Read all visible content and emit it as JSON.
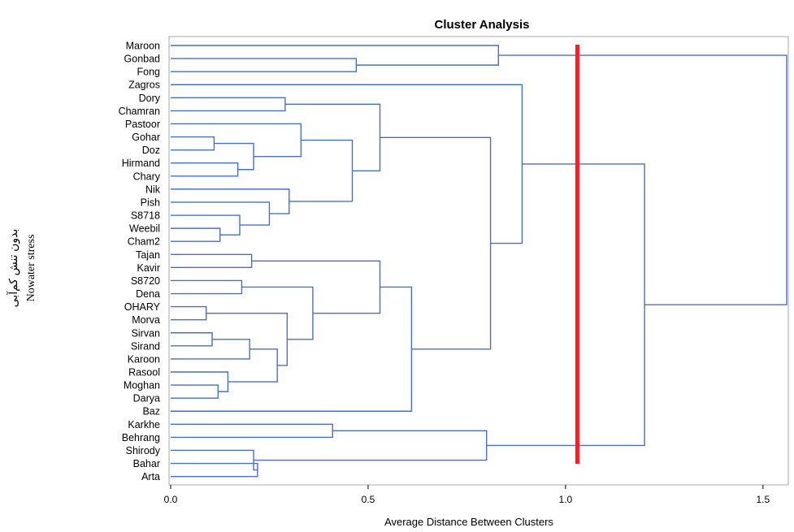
{
  "chart_data": {
    "type": "dendrogram",
    "title": "Cluster Analysis",
    "xlabel": "Average Distance Between Clusters",
    "side_label_lines": [
      "بدون تنش کم‌آبی",
      "Nowater stress"
    ],
    "xlim": [
      0,
      1.56
    ],
    "xticks": [
      {
        "value": 0,
        "label": "0.0"
      },
      {
        "value": 0.5,
        "label": "0.5"
      },
      {
        "value": 1.0,
        "label": "1.0"
      },
      {
        "value": 1.5,
        "label": "1.5"
      }
    ],
    "cut_line": {
      "value": 1.03,
      "color": "#e8262a"
    },
    "branch_color": "#4a6fc0",
    "leaves": [
      "Maroon",
      "Gonbad",
      "Fong",
      "Zagros",
      "Dory",
      "Chamran",
      "Pastoor",
      "Gohar",
      "Doz",
      "Hirmand",
      "Chary",
      "Nik",
      "Pish",
      "S8718",
      "Weebil",
      "Cham2",
      "Tajan",
      "Kavir",
      "S8720",
      "Dena",
      "OHARY",
      "Morva",
      "Sirvan",
      "Sirand",
      "Karoon",
      "Rasool",
      "Moghan",
      "Darya",
      "Baz",
      "Karkhe",
      "Behrang",
      "Shirody",
      "Bahar",
      "Arta"
    ],
    "merges": [
      {
        "id": "m1",
        "a": "Gohar",
        "b": "Doz",
        "height": 0.11
      },
      {
        "id": "m2",
        "a": "Hirmand",
        "b": "Chary",
        "height": 0.17
      },
      {
        "id": "m3",
        "a": "m1",
        "b": "m2",
        "height": 0.21
      },
      {
        "id": "m4",
        "a": "Pastoor",
        "b": "m3",
        "height": 0.33
      },
      {
        "id": "m5",
        "a": "Weebil",
        "b": "Cham2",
        "height": 0.125
      },
      {
        "id": "m6",
        "a": "S8718",
        "b": "m5",
        "height": 0.175
      },
      {
        "id": "m7",
        "a": "Pish",
        "b": "m6",
        "height": 0.25
      },
      {
        "id": "m8",
        "a": "Nik",
        "b": "m7",
        "height": 0.3
      },
      {
        "id": "m9",
        "a": "m4",
        "b": "m8",
        "height": 0.46
      },
      {
        "id": "m10",
        "a": "Dory",
        "b": "Chamran",
        "height": 0.29
      },
      {
        "id": "m11",
        "a": "m10",
        "b": "m9",
        "height": 0.53
      },
      {
        "id": "m12",
        "a": "Tajan",
        "b": "Kavir",
        "height": 0.205
      },
      {
        "id": "m13",
        "a": "S8720",
        "b": "Dena",
        "height": 0.18
      },
      {
        "id": "m14",
        "a": "OHARY",
        "b": "Morva",
        "height": 0.09
      },
      {
        "id": "m15",
        "a": "Sirvan",
        "b": "Sirand",
        "height": 0.105
      },
      {
        "id": "m16",
        "a": "m15",
        "b": "Karoon",
        "height": 0.2
      },
      {
        "id": "m17",
        "a": "Moghan",
        "b": "Darya",
        "height": 0.12
      },
      {
        "id": "m18",
        "a": "Rasool",
        "b": "m17",
        "height": 0.145
      },
      {
        "id": "m19",
        "a": "m16",
        "b": "m18",
        "height": 0.27
      },
      {
        "id": "m20",
        "a": "m14",
        "b": "m19",
        "height": 0.295
      },
      {
        "id": "m21",
        "a": "m13",
        "b": "m20",
        "height": 0.36
      },
      {
        "id": "m22",
        "a": "m12",
        "b": "m21",
        "height": 0.53
      },
      {
        "id": "m23",
        "a": "m22",
        "b": "Baz",
        "height": 0.61
      },
      {
        "id": "m24",
        "a": "m11",
        "b": "m23",
        "height": 0.81
      },
      {
        "id": "m25",
        "a": "Zagros",
        "b": "m24",
        "height": 0.89
      },
      {
        "id": "m26",
        "a": "Gonbad",
        "b": "Fong",
        "height": 0.47
      },
      {
        "id": "m27",
        "a": "Maroon",
        "b": "m26",
        "height": 0.83
      },
      {
        "id": "m28",
        "a": "Karkhe",
        "b": "Behrang",
        "height": 0.41
      },
      {
        "id": "m29",
        "a": "Bahar",
        "b": "Arta",
        "height": 0.22
      },
      {
        "id": "m30",
        "a": "Shirody",
        "b": "m29",
        "height": 0.21
      },
      {
        "id": "m31",
        "a": "m28",
        "b": "m30",
        "height": 0.8
      },
      {
        "id": "m32",
        "a": "m25",
        "b": "m31",
        "height": 1.2
      },
      {
        "id": "m33",
        "a": "m27",
        "b": "m32",
        "height": 1.56
      }
    ]
  }
}
